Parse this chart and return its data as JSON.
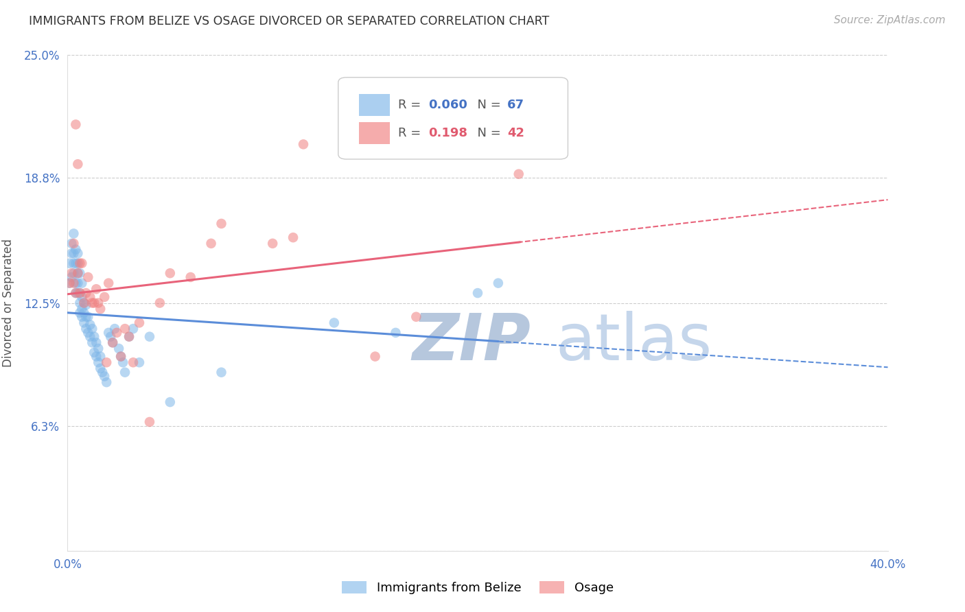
{
  "title": "IMMIGRANTS FROM BELIZE VS OSAGE DIVORCED OR SEPARATED CORRELATION CHART",
  "source": "Source: ZipAtlas.com",
  "ylabel": "Divorced or Separated",
  "xlim": [
    0.0,
    0.4
  ],
  "ylim": [
    0.0,
    0.25
  ],
  "ytick_vals": [
    0.0,
    0.063,
    0.125,
    0.188,
    0.25
  ],
  "ytick_labels": [
    "",
    "6.3%",
    "12.5%",
    "18.8%",
    "25.0%"
  ],
  "xtick_vals": [
    0.0,
    0.08,
    0.16,
    0.24,
    0.32,
    0.4
  ],
  "xtick_labels": [
    "0.0%",
    "",
    "",
    "",
    "",
    "40.0%"
  ],
  "color_blue": "#7EB6E8",
  "color_pink": "#F08080",
  "color_blue_line": "#5B8DD9",
  "color_pink_line": "#E8637A",
  "blue_scatter_x": [
    0.001,
    0.001,
    0.002,
    0.002,
    0.002,
    0.003,
    0.003,
    0.003,
    0.003,
    0.004,
    0.004,
    0.004,
    0.004,
    0.005,
    0.005,
    0.005,
    0.005,
    0.005,
    0.006,
    0.006,
    0.006,
    0.006,
    0.007,
    0.007,
    0.007,
    0.007,
    0.008,
    0.008,
    0.008,
    0.009,
    0.009,
    0.009,
    0.01,
    0.01,
    0.011,
    0.011,
    0.012,
    0.012,
    0.013,
    0.013,
    0.014,
    0.014,
    0.015,
    0.015,
    0.016,
    0.016,
    0.017,
    0.018,
    0.019,
    0.02,
    0.021,
    0.022,
    0.023,
    0.025,
    0.026,
    0.027,
    0.028,
    0.03,
    0.032,
    0.035,
    0.04,
    0.05,
    0.075,
    0.13,
    0.16,
    0.2,
    0.21
  ],
  "blue_scatter_y": [
    0.135,
    0.145,
    0.15,
    0.155,
    0.138,
    0.14,
    0.145,
    0.15,
    0.16,
    0.13,
    0.135,
    0.145,
    0.152,
    0.13,
    0.135,
    0.14,
    0.145,
    0.15,
    0.12,
    0.125,
    0.13,
    0.14,
    0.118,
    0.122,
    0.128,
    0.135,
    0.115,
    0.12,
    0.125,
    0.112,
    0.118,
    0.124,
    0.11,
    0.118,
    0.108,
    0.114,
    0.105,
    0.112,
    0.1,
    0.108,
    0.098,
    0.105,
    0.095,
    0.102,
    0.092,
    0.098,
    0.09,
    0.088,
    0.085,
    0.11,
    0.108,
    0.105,
    0.112,
    0.102,
    0.098,
    0.095,
    0.09,
    0.108,
    0.112,
    0.095,
    0.108,
    0.075,
    0.09,
    0.115,
    0.11,
    0.13,
    0.135
  ],
  "pink_scatter_x": [
    0.001,
    0.002,
    0.003,
    0.003,
    0.004,
    0.004,
    0.005,
    0.005,
    0.006,
    0.006,
    0.007,
    0.008,
    0.009,
    0.01,
    0.011,
    0.012,
    0.013,
    0.014,
    0.015,
    0.016,
    0.018,
    0.019,
    0.02,
    0.022,
    0.024,
    0.026,
    0.028,
    0.03,
    0.032,
    0.035,
    0.04,
    0.045,
    0.05,
    0.06,
    0.07,
    0.075,
    0.1,
    0.11,
    0.115,
    0.15,
    0.17,
    0.22
  ],
  "pink_scatter_y": [
    0.135,
    0.14,
    0.135,
    0.155,
    0.13,
    0.215,
    0.14,
    0.195,
    0.13,
    0.145,
    0.145,
    0.125,
    0.13,
    0.138,
    0.128,
    0.125,
    0.125,
    0.132,
    0.125,
    0.122,
    0.128,
    0.095,
    0.135,
    0.105,
    0.11,
    0.098,
    0.112,
    0.108,
    0.095,
    0.115,
    0.065,
    0.125,
    0.14,
    0.138,
    0.155,
    0.165,
    0.155,
    0.158,
    0.205,
    0.098,
    0.118,
    0.19
  ]
}
